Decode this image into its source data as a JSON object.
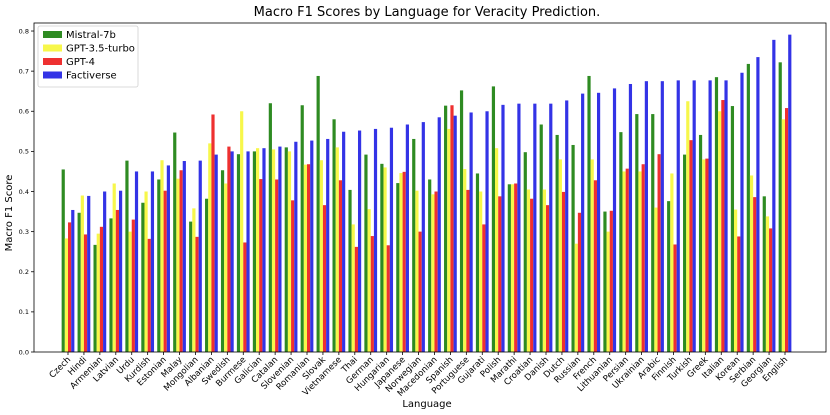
{
  "chart_data": {
    "type": "bar",
    "title": "Macro F1 Scores by Language for Veracity Prediction.",
    "xlabel": "Language",
    "ylabel": "Macro F1 Score",
    "ylim": [
      0,
      0.82
    ],
    "yticks": [
      0.0,
      0.1,
      0.2,
      0.3,
      0.4,
      0.5,
      0.6,
      0.7,
      0.8
    ],
    "ytick_labels": [
      "0.0",
      "0.1",
      "0.2",
      "0.3",
      "0.4",
      "0.5",
      "0.6",
      "0.7",
      "0.8"
    ],
    "grid": false,
    "legend_position": "top-left",
    "categories": [
      "Czech",
      "Hindi",
      "Armenian",
      "Latvian",
      "Urdu",
      "Kurdish",
      "Estonian",
      "Malay",
      "Mongolian",
      "Albanian",
      "Swedish",
      "Burmese",
      "Galician",
      "Catalan",
      "Slovenian",
      "Romanian",
      "Slovak",
      "Vietnamese",
      "Thai",
      "German",
      "Hungarian",
      "Japanese",
      "Norwegian",
      "Macedonian",
      "Spanish",
      "Portuguese",
      "Gujarati",
      "Polish",
      "Marathi",
      "Croatian",
      "Danish",
      "Dutch",
      "Russian",
      "French",
      "Lithuanian",
      "Persian",
      "Ukrainian",
      "Arabic",
      "Finnish",
      "Turkish",
      "Greek",
      "Italian",
      "Korean",
      "Serbian",
      "Georgian",
      "English"
    ],
    "series": [
      {
        "name": "Mistral-7b",
        "color": "#2e8b22",
        "values": [
          0.455,
          0.347,
          0.267,
          0.333,
          0.477,
          0.372,
          0.43,
          0.547,
          0.325,
          0.382,
          0.453,
          0.493,
          0.5,
          0.62,
          0.51,
          0.615,
          0.688,
          0.58,
          0.404,
          0.492,
          0.469,
          0.421,
          0.531,
          0.43,
          0.614,
          0.652,
          0.445,
          0.662,
          0.418,
          0.498,
          0.567,
          0.541,
          0.516,
          0.688,
          0.35,
          0.548,
          0.593,
          0.593,
          0.376,
          0.492,
          0.541,
          0.685,
          0.613,
          0.718,
          0.388,
          0.722
        ]
      },
      {
        "name": "GPT-3.5-turbo",
        "color": "#f7f74a",
        "values": [
          0.283,
          0.39,
          0.295,
          0.42,
          0.3,
          0.4,
          0.478,
          0.432,
          0.358,
          0.52,
          0.42,
          0.6,
          0.508,
          0.505,
          0.5,
          0.467,
          0.478,
          0.51,
          0.318,
          0.356,
          0.46,
          0.446,
          0.402,
          0.393,
          0.556,
          0.456,
          0.4,
          0.508,
          0.418,
          0.405,
          0.405,
          0.48,
          0.27,
          0.48,
          0.3,
          0.45,
          0.45,
          0.36,
          0.445,
          0.625,
          0.48,
          0.6,
          0.355,
          0.44,
          0.338,
          0.58
        ]
      },
      {
        "name": "GPT-4",
        "color": "#ee3030",
        "values": [
          0.323,
          0.293,
          0.312,
          0.354,
          0.33,
          0.282,
          0.402,
          0.453,
          0.287,
          0.592,
          0.512,
          0.273,
          0.431,
          0.43,
          0.378,
          0.468,
          0.366,
          0.428,
          0.262,
          0.289,
          0.266,
          0.449,
          0.3,
          0.4,
          0.615,
          0.404,
          0.318,
          0.388,
          0.42,
          0.382,
          0.366,
          0.399,
          0.347,
          0.428,
          0.352,
          0.457,
          0.468,
          0.493,
          0.268,
          0.528,
          0.482,
          0.628,
          0.288,
          0.386,
          0.308,
          0.608
        ]
      },
      {
        "name": "Factiverse",
        "color": "#3333e6",
        "values": [
          0.354,
          0.389,
          0.4,
          0.402,
          0.45,
          0.45,
          0.465,
          0.476,
          0.477,
          0.492,
          0.5,
          0.5,
          0.508,
          0.512,
          0.524,
          0.527,
          0.531,
          0.549,
          0.552,
          0.556,
          0.559,
          0.567,
          0.573,
          0.585,
          0.589,
          0.597,
          0.6,
          0.616,
          0.619,
          0.619,
          0.619,
          0.627,
          0.644,
          0.646,
          0.657,
          0.668,
          0.675,
          0.675,
          0.677,
          0.677,
          0.677,
          0.677,
          0.696,
          0.735,
          0.778,
          0.791
        ]
      }
    ]
  }
}
